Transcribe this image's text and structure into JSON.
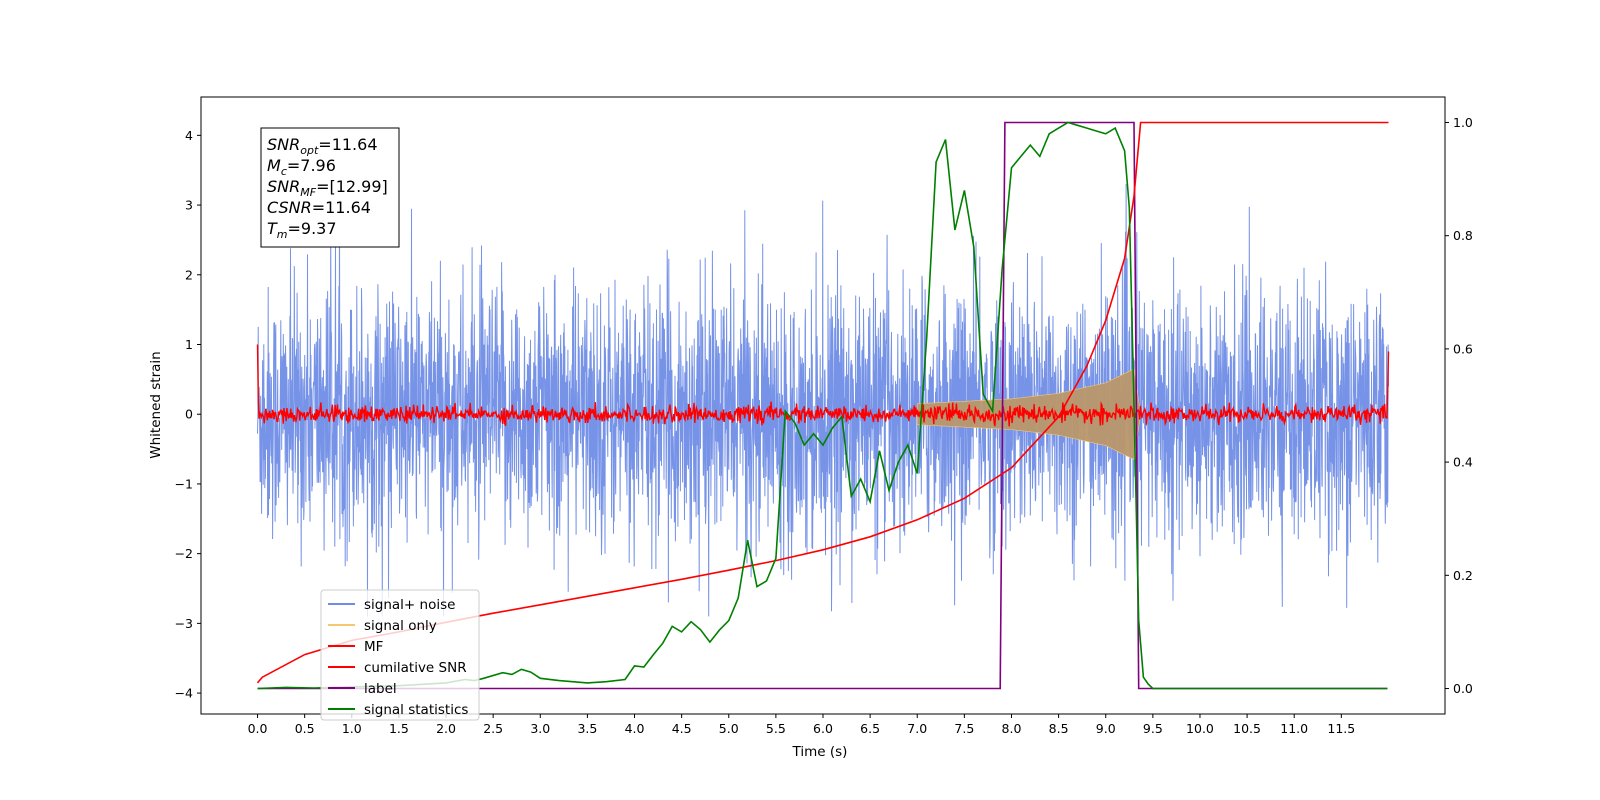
{
  "chart_data": {
    "type": "line",
    "xlabel": "Time (s)",
    "ylabel": "Whitened strain",
    "xlim": [
      -0.6,
      12.6
    ],
    "ylim": [
      -4.3,
      4.55
    ],
    "y2lim": [
      -0.045,
      1.045
    ],
    "x_ticks": [
      0.0,
      0.5,
      1.0,
      1.5,
      2.0,
      2.5,
      3.0,
      3.5,
      4.0,
      4.5,
      5.0,
      5.5,
      6.0,
      6.5,
      7.0,
      7.5,
      8.0,
      8.5,
      9.0,
      9.5,
      10.0,
      10.5,
      11.0,
      11.5
    ],
    "x_tick_labels": [
      "0.0",
      "0.5",
      "1.0",
      "1.5",
      "2.0",
      "2.5",
      "3.0",
      "3.5",
      "4.0",
      "4.5",
      "5.0",
      "5.5",
      "6.0",
      "6.5",
      "7.0",
      "7.5",
      "8.0",
      "8.5",
      "9.0",
      "9.5",
      "10.0",
      "10.5",
      "11.0",
      "11.5"
    ],
    "y_ticks": [
      -4,
      -3,
      -2,
      -1,
      0,
      1,
      2,
      3,
      4
    ],
    "y_tick_labels": [
      "−4",
      "−3",
      "−2",
      "−1",
      "0",
      "1",
      "2",
      "3",
      "4"
    ],
    "y2_ticks": [
      0.0,
      0.2,
      0.4,
      0.6,
      0.8,
      1.0
    ],
    "y2_tick_labels": [
      "0.0",
      "0.2",
      "0.4",
      "0.6",
      "0.8",
      "1.0"
    ],
    "grid": false,
    "legend_position": "lower-left",
    "series": [
      {
        "name": "signal+ noise",
        "color": "#6f8de6",
        "axis": "left",
        "kind": "noise",
        "x_range": [
          0,
          12
        ],
        "std": 0.9,
        "envelope": [
          [
            0,
            2.2
          ],
          [
            12,
            2.2
          ]
        ]
      },
      {
        "name": "signal only",
        "color": "#f5c870",
        "axis": "left",
        "kind": "chirp",
        "x_range": [
          7.0,
          9.37
        ],
        "amplitude": [
          [
            7.0,
            0.15
          ],
          [
            8.0,
            0.22
          ],
          [
            8.5,
            0.3
          ],
          [
            9.0,
            0.45
          ],
          [
            9.3,
            0.65
          ],
          [
            9.37,
            0.0
          ]
        ]
      },
      {
        "name": "MF",
        "color": "#ff0000",
        "axis": "left",
        "kind": "noise",
        "x_range": [
          0,
          12
        ],
        "std": 0.06,
        "start_value": 1.0,
        "end_value": 0.9
      },
      {
        "name": "cumilative SNR",
        "color": "#ff0000",
        "axis": "right",
        "x": [
          0.0,
          0.05,
          0.5,
          1.0,
          1.5,
          2.0,
          2.5,
          3.0,
          3.5,
          4.0,
          4.5,
          5.0,
          5.5,
          6.0,
          6.5,
          7.0,
          7.5,
          8.0,
          8.5,
          8.8,
          9.0,
          9.2,
          9.3,
          9.37,
          12.0
        ],
        "y": [
          0.01,
          0.02,
          0.06,
          0.085,
          0.1,
          0.117,
          0.133,
          0.148,
          0.163,
          0.178,
          0.193,
          0.209,
          0.226,
          0.245,
          0.268,
          0.298,
          0.336,
          0.39,
          0.48,
          0.57,
          0.65,
          0.76,
          0.87,
          1.0,
          1.0
        ]
      },
      {
        "name": "label",
        "color": "#800080",
        "axis": "right",
        "x": [
          0.0,
          7.88,
          7.93,
          9.3,
          9.35,
          11.99
        ],
        "y": [
          0.0,
          0.0,
          1.0,
          1.0,
          0.0,
          0.0
        ]
      },
      {
        "name": "signal statistics",
        "color": "#008000",
        "axis": "right",
        "x": [
          0.0,
          0.3,
          0.6,
          1.0,
          1.5,
          2.0,
          2.2,
          2.3,
          2.4,
          2.6,
          2.7,
          2.8,
          2.9,
          3.0,
          3.2,
          3.5,
          3.7,
          3.9,
          4.0,
          4.1,
          4.2,
          4.3,
          4.4,
          4.5,
          4.6,
          4.7,
          4.8,
          4.9,
          5.0,
          5.1,
          5.2,
          5.3,
          5.4,
          5.5,
          5.6,
          5.7,
          5.8,
          5.9,
          6.0,
          6.1,
          6.2,
          6.3,
          6.4,
          6.5,
          6.6,
          6.7,
          6.8,
          6.9,
          7.0,
          7.1,
          7.2,
          7.3,
          7.4,
          7.5,
          7.6,
          7.7,
          7.8,
          7.9,
          8.0,
          8.1,
          8.2,
          8.3,
          8.4,
          8.5,
          8.6,
          8.7,
          8.8,
          8.9,
          9.0,
          9.1,
          9.2,
          9.25,
          9.3,
          9.35,
          9.4,
          9.45,
          9.5,
          10.0,
          11.0,
          11.99
        ],
        "y": [
          0.0,
          0.002,
          0.001,
          0.003,
          0.005,
          0.01,
          0.016,
          0.014,
          0.018,
          0.028,
          0.025,
          0.034,
          0.029,
          0.018,
          0.014,
          0.01,
          0.012,
          0.016,
          0.04,
          0.038,
          0.06,
          0.08,
          0.11,
          0.1,
          0.118,
          0.104,
          0.082,
          0.103,
          0.12,
          0.16,
          0.262,
          0.18,
          0.19,
          0.23,
          0.49,
          0.47,
          0.43,
          0.45,
          0.43,
          0.46,
          0.48,
          0.34,
          0.37,
          0.33,
          0.42,
          0.35,
          0.4,
          0.43,
          0.38,
          0.62,
          0.93,
          0.97,
          0.81,
          0.88,
          0.78,
          0.52,
          0.49,
          0.74,
          0.92,
          0.94,
          0.96,
          0.94,
          0.98,
          0.99,
          1.0,
          0.995,
          0.99,
          0.985,
          0.98,
          0.99,
          0.95,
          0.85,
          0.5,
          0.12,
          0.02,
          0.008,
          0.0,
          0.0,
          0.0,
          0.0
        ]
      }
    ],
    "annotation": [
      {
        "var": "SNR",
        "sub": "opt",
        "value": "=11.64"
      },
      {
        "var": "M",
        "sub": "c",
        "value": "=7.96"
      },
      {
        "var": "SNR",
        "sub": "MF",
        "value": "=[12.99]"
      },
      {
        "var": "CSNR",
        "sub": "",
        "value": "=11.64"
      },
      {
        "var": "T",
        "sub": "m",
        "value": "=9.37"
      }
    ]
  }
}
